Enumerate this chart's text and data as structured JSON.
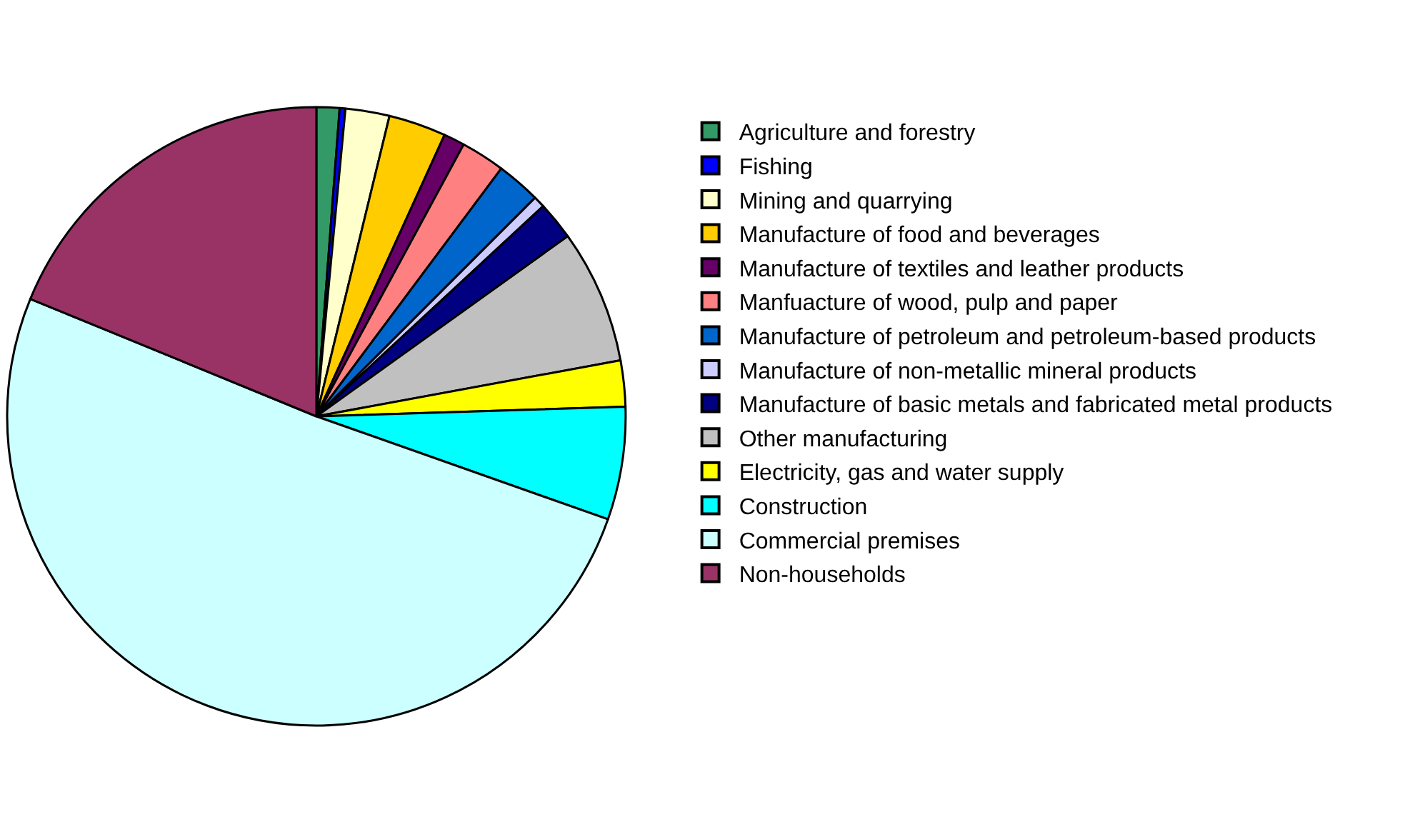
{
  "chart_data": {
    "type": "pie",
    "categories": [
      "Agriculture and forestry",
      "Fishing",
      "Mining and quarrying",
      "Manufacture of food and beverages",
      "Manufacture of textiles and leather products",
      "Manfuacture of wood, pulp and paper",
      "Manufacture of petroleum and petroleum-based products",
      "Manufacture of non-metallic mineral products",
      "Manufacture of basic metals and fabricated metal products",
      "Other manufacturing",
      "Electricity, gas and water supply",
      "Construction",
      "Commercial premises",
      "Non-households"
    ],
    "values": [
      1.2,
      0.3,
      2.3,
      3.0,
      1.1,
      2.3,
      2.3,
      0.6,
      2.0,
      7.0,
      2.4,
      5.9,
      50.8,
      18.8
    ],
    "colors": [
      "#339966",
      "#0000ff",
      "#ffffcc",
      "#ffcc00",
      "#660066",
      "#ff8080",
      "#0066cc",
      "#ccccff",
      "#000080",
      "#c0c0c0",
      "#ffff00",
      "#00ffff",
      "#ccffff",
      "#993366"
    ],
    "legend": "right"
  }
}
